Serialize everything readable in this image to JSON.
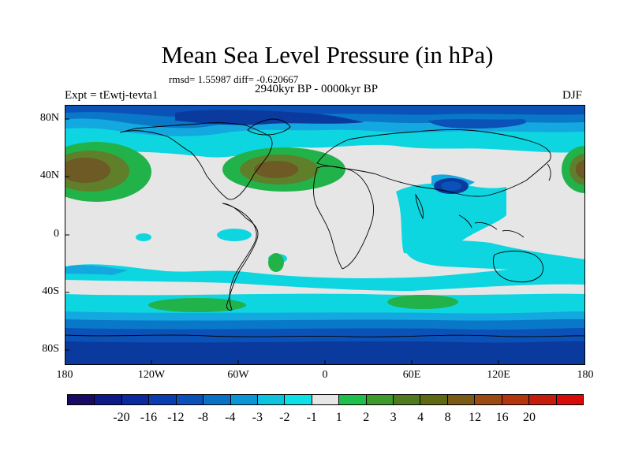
{
  "title": "Mean Sea Level Pressure (in hPa)",
  "stats": "rmsd= 1.55987 diff= -0.620667",
  "experiment": "Expt = tEwtj-tevta1",
  "period": "2940kyr BP - 0000kyr BP",
  "season": "DJF",
  "lat_labels": [
    "80N",
    "40N",
    "0",
    "40S",
    "80S"
  ],
  "lon_labels": [
    "180",
    "120W",
    "60W",
    "0",
    "60E",
    "120E",
    "180"
  ],
  "colorbar": {
    "labels": [
      "-20",
      "-16",
      "-12",
      "-8",
      "-4",
      "-3",
      "-2",
      "-1",
      "1",
      "2",
      "3",
      "4",
      "8",
      "12",
      "16",
      "20"
    ],
    "colors": [
      "#1a0a66",
      "#0d1a88",
      "#0b2aa0",
      "#0a3eb0",
      "#0b50b8",
      "#0a72c6",
      "#0a96d6",
      "#0dc3de",
      "#0ee0e6",
      "#e6e6e6",
      "#1fbf4c",
      "#3f9a2c",
      "#4f7a1f",
      "#5f6812",
      "#7a5a14",
      "#9a4a12",
      "#b4340e",
      "#c61c0c",
      "#d80a0a"
    ]
  },
  "colors": {
    "land_outline": "#000000",
    "neutral": "#e6e6e6",
    "cyan": "#0ed6e0",
    "light_blue": "#14a8e0",
    "mid_blue": "#0a78c8",
    "blue": "#0b52b8",
    "deep_blue": "#0a3a9e",
    "green": "#22b24a",
    "olive": "#5f7f2a",
    "brown": "#6d5a24"
  }
}
